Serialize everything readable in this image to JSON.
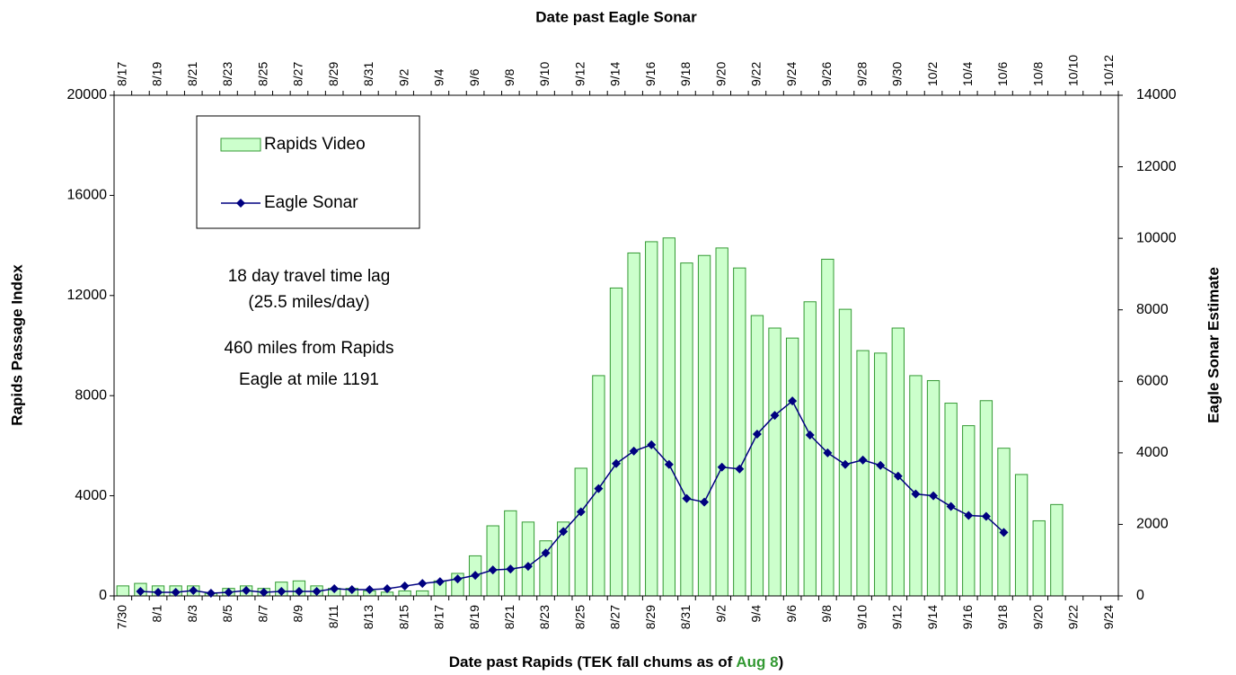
{
  "chart_data": {
    "type": "bar",
    "xlabel": [
      "Date past Rapids (TEK fall chums as of ",
      "Aug 8",
      ")"
    ],
    "xlabel_colors": [
      "#000000",
      "#339933",
      "#000000"
    ],
    "top_xlabel": "Date past Eagle Sonar",
    "ylabel": "Rapids Passage Index",
    "y2label": "Eagle Sonar Estimate",
    "categories": [
      "7/30",
      null,
      "8/1",
      null,
      "8/3",
      null,
      "8/5",
      null,
      "8/7",
      null,
      "8/9",
      null,
      "8/11",
      null,
      "8/13",
      null,
      "8/15",
      null,
      "8/17",
      null,
      "8/19",
      null,
      "8/21",
      null,
      "8/23",
      null,
      "8/25",
      null,
      "8/27",
      null,
      "8/29",
      null,
      "8/31",
      null,
      "9/2",
      null,
      "9/4",
      null,
      "9/6",
      null,
      "9/8",
      null,
      "9/10",
      null,
      "9/12",
      null,
      "9/14",
      null,
      "9/16",
      null,
      "9/18",
      null,
      "9/20",
      null,
      "9/22",
      null,
      "9/24"
    ],
    "top_categories": [
      "8/17",
      null,
      "8/19",
      null,
      "8/21",
      null,
      "8/23",
      null,
      "8/25",
      null,
      "8/27",
      null,
      "8/29",
      null,
      "8/31",
      null,
      "9/2",
      null,
      "9/4",
      null,
      "9/6",
      null,
      "9/8",
      null,
      "9/10",
      null,
      "9/12",
      null,
      "9/14",
      null,
      "9/16",
      null,
      "9/18",
      null,
      "9/20",
      null,
      "9/22",
      null,
      "9/24",
      null,
      "9/26",
      null,
      "9/28",
      null,
      "9/30",
      null,
      "10/2",
      null,
      "10/4",
      null,
      "10/6",
      null,
      "10/8",
      null,
      "10/10",
      null,
      "10/12"
    ],
    "series": [
      {
        "name": "Rapids Video",
        "type": "bar",
        "color": "#ccffcc",
        "edge_color": "#339933",
        "values": [
          400,
          500,
          400,
          400,
          400,
          100,
          300,
          400,
          300,
          550,
          600,
          400,
          300,
          300,
          200,
          150,
          200,
          200,
          600,
          900,
          1600,
          2800,
          3400,
          2950,
          2200,
          2950,
          5100,
          8800,
          12300,
          13700,
          14150,
          14300,
          13300,
          13600,
          13900,
          13100,
          11200,
          10700,
          10300,
          11750,
          13450,
          11450,
          9800,
          9700,
          10700,
          8800,
          8600,
          7700,
          6800,
          7800,
          5900,
          4850,
          3000,
          3650,
          null,
          null,
          null
        ]
      },
      {
        "name": "Eagle Sonar",
        "type": "line",
        "axis": "y2",
        "color": "#000080",
        "values": [
          null,
          125,
          100,
          100,
          150,
          75,
          100,
          150,
          100,
          125,
          125,
          125,
          200,
          175,
          175,
          200,
          275,
          350,
          400,
          475,
          575,
          725,
          750,
          825,
          1200,
          1800,
          2350,
          3000,
          3700,
          4050,
          4225,
          3675,
          2725,
          2625,
          3600,
          3550,
          4525,
          5050,
          5450,
          4500,
          4000,
          3675,
          3800,
          3650,
          3350,
          2850,
          2800,
          2500,
          2250,
          2225,
          1775,
          null,
          null,
          null,
          null,
          null,
          null
        ]
      }
    ],
    "ylim": [
      0,
      20000
    ],
    "yticks": [
      0,
      4000,
      8000,
      12000,
      16000,
      20000
    ],
    "y2lim": [
      0,
      14000
    ],
    "y2ticks": [
      0,
      2000,
      4000,
      6000,
      8000,
      10000,
      12000,
      14000
    ],
    "annotations": [
      "18 day travel time lag",
      "(25.5 miles/day)",
      "460 miles from Rapids",
      "Eagle at mile 1191"
    ],
    "legend": "upper left",
    "grid": false
  }
}
